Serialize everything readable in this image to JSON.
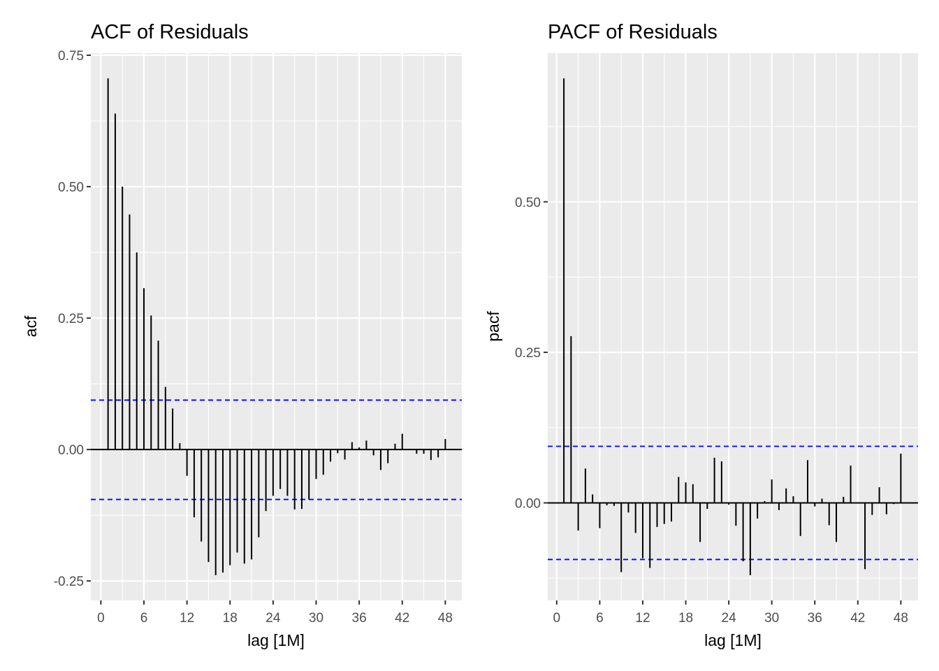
{
  "chart_data": [
    {
      "type": "bar",
      "subtype": "correlogram",
      "title": "ACF of Residuals",
      "xlabel": "lag [1M]",
      "ylabel": "acf",
      "xlim": [
        -1.4,
        50.3
      ],
      "ylim": [
        -0.287,
        0.754
      ],
      "x_ticks": [
        0,
        6,
        12,
        18,
        24,
        30,
        36,
        42,
        48
      ],
      "x_tick_labels": [
        "0",
        "6",
        "12",
        "18",
        "24",
        "30",
        "36",
        "42",
        "48"
      ],
      "y_ticks": [
        -0.25,
        0,
        0.25,
        0.5,
        0.75
      ],
      "y_tick_labels": [
        "-0.25",
        "0.00",
        "0.25",
        "0.50",
        "0.75"
      ],
      "y_minor_ticks": [
        -0.125,
        0.125,
        0.375,
        0.625
      ],
      "grid": true,
      "confidence_bounds": [
        0.094,
        -0.095
      ],
      "confidence_color": "#0000ff",
      "lags": [
        1,
        2,
        3,
        4,
        5,
        6,
        7,
        8,
        9,
        10,
        11,
        12,
        13,
        14,
        15,
        16,
        17,
        18,
        19,
        20,
        21,
        22,
        23,
        24,
        25,
        26,
        27,
        28,
        29,
        30,
        31,
        32,
        33,
        34,
        35,
        36,
        37,
        38,
        39,
        40,
        41,
        42,
        43,
        44,
        45,
        46,
        47,
        48
      ],
      "values": [
        0.706,
        0.639,
        0.5,
        0.447,
        0.375,
        0.307,
        0.255,
        0.207,
        0.119,
        0.078,
        0.012,
        -0.05,
        -0.129,
        -0.175,
        -0.214,
        -0.239,
        -0.234,
        -0.22,
        -0.196,
        -0.217,
        -0.209,
        -0.167,
        -0.117,
        -0.088,
        -0.075,
        -0.088,
        -0.114,
        -0.113,
        -0.095,
        -0.056,
        -0.048,
        -0.023,
        -0.007,
        -0.019,
        0.014,
        0.004,
        0.017,
        -0.011,
        -0.039,
        -0.026,
        0.011,
        0.03,
        0.001,
        -0.008,
        -0.008,
        -0.02,
        -0.015,
        0.02
      ]
    },
    {
      "type": "bar",
      "subtype": "correlogram",
      "title": "PACF of Residuals",
      "xlabel": "lag [1M]",
      "ylabel": "pacf",
      "xlim": [
        -1.25,
        50.4
      ],
      "ylim": [
        -0.162,
        0.747
      ],
      "x_ticks": [
        0,
        6,
        12,
        18,
        24,
        30,
        36,
        42,
        48
      ],
      "x_tick_labels": [
        "0",
        "6",
        "12",
        "18",
        "24",
        "30",
        "36",
        "42",
        "48"
      ],
      "y_ticks": [
        0,
        0.25,
        0.5
      ],
      "y_tick_labels": [
        "0.00",
        "0.25",
        "0.50"
      ],
      "y_minor_ticks": [
        -0.125,
        0.125,
        0.375,
        0.625
      ],
      "grid": true,
      "confidence_bounds": [
        0.094,
        -0.094
      ],
      "confidence_color": "#0000ff",
      "lags": [
        1,
        2,
        3,
        4,
        5,
        6,
        7,
        8,
        9,
        10,
        11,
        12,
        13,
        14,
        15,
        16,
        17,
        18,
        19,
        20,
        21,
        22,
        23,
        24,
        25,
        26,
        27,
        28,
        29,
        30,
        31,
        32,
        33,
        34,
        35,
        36,
        37,
        38,
        39,
        40,
        41,
        42,
        43,
        44,
        45,
        46,
        47,
        48
      ],
      "values": [
        0.705,
        0.277,
        -0.046,
        0.057,
        0.014,
        -0.042,
        -0.004,
        -0.005,
        -0.115,
        -0.016,
        -0.05,
        -0.092,
        -0.108,
        -0.04,
        -0.035,
        -0.031,
        0.043,
        0.034,
        0.031,
        -0.065,
        -0.01,
        0.075,
        0.069,
        -0.003,
        -0.038,
        -0.097,
        -0.12,
        -0.026,
        0.003,
        0.039,
        -0.012,
        0.024,
        0.011,
        -0.055,
        0.071,
        -0.006,
        0.007,
        -0.037,
        -0.065,
        0.01,
        0.062,
        0.0,
        -0.11,
        -0.02,
        0.026,
        -0.019,
        -0.002,
        0.082
      ]
    }
  ]
}
